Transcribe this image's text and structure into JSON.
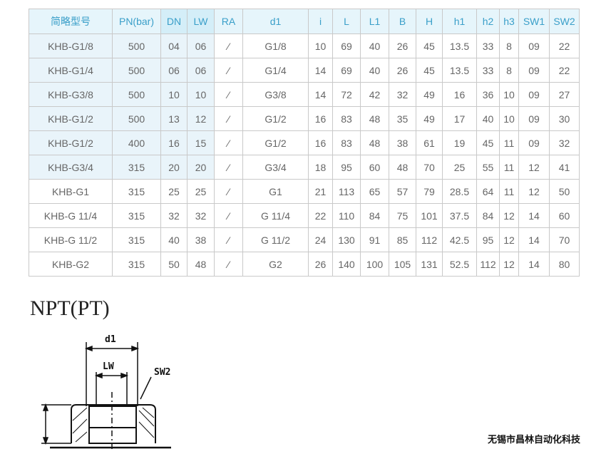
{
  "table": {
    "headers": [
      "简略型号",
      "PN(bar)",
      "DN",
      "LW",
      "RA",
      "d1",
      "i",
      "L",
      "L1",
      "B",
      "H",
      "h1",
      "h2",
      "h3",
      "SW1",
      "SW2"
    ],
    "rows": [
      [
        "KHB-G1/8",
        "500",
        "04",
        "06",
        "⁄",
        "G1/8",
        "10",
        "69",
        "40",
        "26",
        "45",
        "13.5",
        "33",
        "8",
        "09",
        "22"
      ],
      [
        "KHB-G1/4",
        "500",
        "06",
        "06",
        "⁄",
        "G1/4",
        "14",
        "69",
        "40",
        "26",
        "45",
        "13.5",
        "33",
        "8",
        "09",
        "22"
      ],
      [
        "KHB-G3/8",
        "500",
        "10",
        "10",
        "⁄",
        "G3/8",
        "14",
        "72",
        "42",
        "32",
        "49",
        "16",
        "36",
        "10",
        "09",
        "27"
      ],
      [
        "KHB-G1/2",
        "500",
        "13",
        "12",
        "⁄",
        "G1/2",
        "16",
        "83",
        "48",
        "35",
        "49",
        "17",
        "40",
        "10",
        "09",
        "30"
      ],
      [
        "KHB-G1/2",
        "400",
        "16",
        "15",
        "⁄",
        "G1/2",
        "16",
        "83",
        "48",
        "38",
        "61",
        "19",
        "45",
        "11",
        "09",
        "32"
      ],
      [
        "KHB-G3/4",
        "315",
        "20",
        "20",
        "⁄",
        "G3/4",
        "18",
        "95",
        "60",
        "48",
        "70",
        "25",
        "55",
        "11",
        "12",
        "41"
      ],
      [
        "KHB-G1",
        "315",
        "25",
        "25",
        "⁄",
        "G1",
        "21",
        "113",
        "65",
        "57",
        "79",
        "28.5",
        "64",
        "11",
        "12",
        "50"
      ],
      [
        "KHB-G 11/4",
        "315",
        "32",
        "32",
        "⁄",
        "G 11/4",
        "22",
        "110",
        "84",
        "75",
        "101",
        "37.5",
        "84",
        "12",
        "14",
        "60"
      ],
      [
        "KHB-G 11/2",
        "315",
        "40",
        "38",
        "⁄",
        "G 11/2",
        "24",
        "130",
        "91",
        "85",
        "112",
        "42.5",
        "95",
        "12",
        "14",
        "70"
      ],
      [
        "KHB-G2",
        "315",
        "50",
        "48",
        "⁄",
        "G2",
        "26",
        "140",
        "100",
        "105",
        "131",
        "52.5",
        "112",
        "12",
        "14",
        "80"
      ]
    ]
  },
  "section_title": "NPT(PT)",
  "drawing": {
    "labels": {
      "d1": "d1",
      "lw": "LW",
      "sw2": "SW2"
    }
  },
  "footer": "无锡市昌林自动化科技",
  "colors": {
    "header_bg": "#e6f5fb",
    "header_text": "#3a9fc9"
  }
}
